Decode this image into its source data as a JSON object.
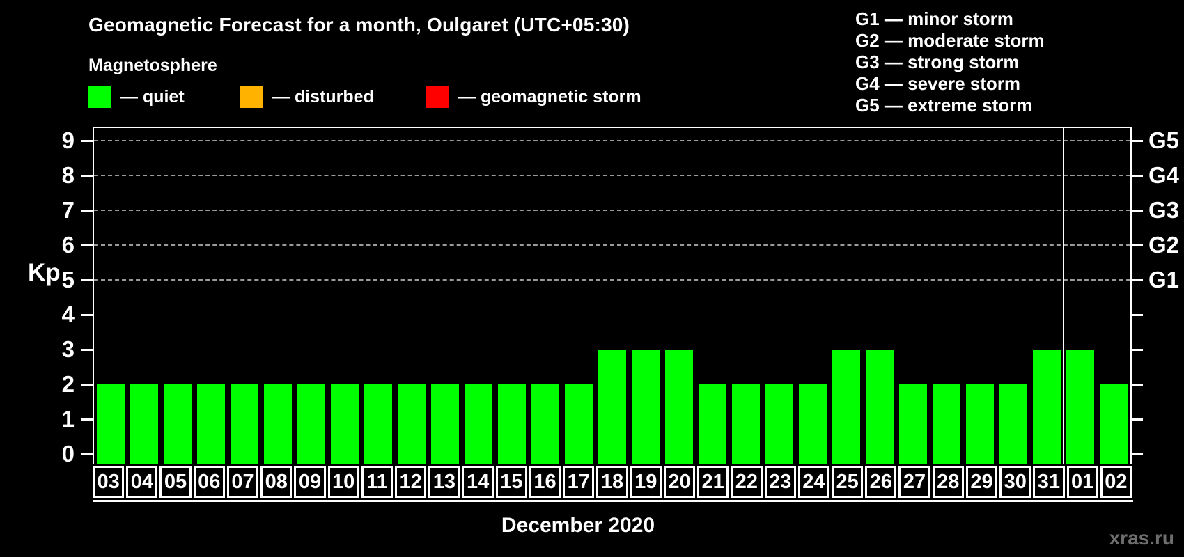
{
  "header": {
    "title": "Geomagnetic Forecast for a month, Oulgaret (UTC+05:30)",
    "subtitle": "Magnetosphere"
  },
  "status_legend": [
    {
      "name": "quiet",
      "label": "— quiet",
      "color": "#00ff00"
    },
    {
      "name": "disturbed",
      "label": "— disturbed",
      "color": "#ffb300"
    },
    {
      "name": "geomagnetic-storm",
      "label": "— geomagnetic storm",
      "color": "#ff0000"
    }
  ],
  "storm_scale_legend": [
    "G1 — minor storm",
    "G2 — moderate storm",
    "G3 — strong storm",
    "G4 — severe storm",
    "G5 — extreme storm"
  ],
  "watermark": "xras.ru",
  "chart_data": {
    "type": "bar",
    "title": "Geomagnetic Forecast for a month, Oulgaret (UTC+05:30)",
    "ylabel": "Kp",
    "xlabel": "December 2020",
    "categories": [
      "03",
      "04",
      "05",
      "06",
      "07",
      "08",
      "09",
      "10",
      "11",
      "12",
      "13",
      "14",
      "15",
      "16",
      "17",
      "18",
      "19",
      "20",
      "21",
      "22",
      "23",
      "24",
      "25",
      "26",
      "27",
      "28",
      "29",
      "30",
      "31",
      "01",
      "02"
    ],
    "values": [
      2,
      2,
      2,
      2,
      2,
      2,
      2,
      2,
      2,
      2,
      2,
      2,
      2,
      2,
      2,
      3,
      3,
      3,
      2,
      2,
      2,
      2,
      3,
      3,
      2,
      2,
      2,
      2,
      3,
      3,
      2
    ],
    "bar_color": "#00ff00",
    "ylim": [
      -0.3,
      9.4
    ],
    "yticks": [
      0,
      1,
      2,
      3,
      4,
      5,
      6,
      7,
      8,
      9
    ],
    "gridlines_at": [
      5,
      6,
      7,
      8,
      9
    ],
    "grid_style": "dashed",
    "right_axis_labels": [
      {
        "value": 5,
        "label": "G1"
      },
      {
        "value": 6,
        "label": "G2"
      },
      {
        "value": 7,
        "label": "G3"
      },
      {
        "value": 8,
        "label": "G4"
      },
      {
        "value": 9,
        "label": "G5"
      }
    ],
    "month_separator_after_index": 28,
    "legend_position": "top-left"
  }
}
